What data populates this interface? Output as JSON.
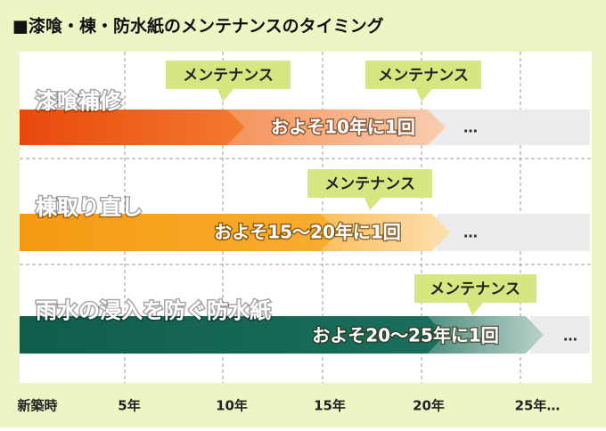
{
  "title": "■漆喰・棟・防水紙のメンテナンスのタイミング",
  "rows": [
    {
      "label": "漆喰補修",
      "callouts": [
        "メンテナンス",
        "メンテナンス"
      ],
      "frequency": "およそ10年に1回",
      "more": "…"
    },
    {
      "label": "棟取り直し",
      "callouts": [
        "メンテナンス"
      ],
      "frequency": "およそ15〜20年に1回",
      "more": "…"
    },
    {
      "label": "雨水の浸入を防ぐ防水紙",
      "callouts": [
        "メンテナンス"
      ],
      "frequency": "およそ20〜25年に1回",
      "more": "…"
    }
  ],
  "axis_labels": [
    "新築時",
    "5年",
    "10年",
    "15年",
    "20年",
    "25年…"
  ]
}
